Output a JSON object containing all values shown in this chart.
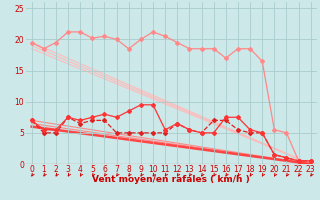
{
  "background_color": "#cce8e8",
  "grid_color": "#aacccc",
  "xlabel": "Vent moyen/en rafales ( km/h )",
  "xlim": [
    -0.5,
    23.5
  ],
  "ylim": [
    0,
    26
  ],
  "yticks": [
    0,
    5,
    10,
    15,
    20,
    25
  ],
  "xticks": [
    0,
    1,
    2,
    3,
    4,
    5,
    6,
    7,
    8,
    9,
    10,
    11,
    12,
    13,
    14,
    15,
    16,
    17,
    18,
    19,
    20,
    21,
    22,
    23
  ],
  "line_rafales": {
    "x": [
      0,
      1,
      2,
      3,
      4,
      5,
      6,
      7,
      8,
      9,
      10,
      11,
      12,
      13,
      14,
      15,
      16,
      17,
      18,
      19,
      20,
      21,
      22,
      23
    ],
    "y": [
      19.5,
      18.5,
      19.5,
      21.2,
      21.2,
      20.2,
      20.5,
      20.0,
      18.5,
      20.0,
      21.2,
      20.5,
      19.5,
      18.5,
      18.5,
      18.5,
      17.0,
      18.5,
      18.5,
      16.5,
      5.5,
      5.0,
      0.5,
      0.5
    ],
    "color": "#ff8888",
    "marker": "D",
    "markersize": 2.0,
    "linewidth": 0.9
  },
  "line_moyen1": {
    "x": [
      0,
      1,
      2,
      3,
      4,
      5,
      6,
      7,
      8,
      9,
      10,
      11,
      12,
      13,
      14,
      15,
      16,
      17,
      18,
      19,
      20,
      21,
      22,
      23
    ],
    "y": [
      7.0,
      5.0,
      5.0,
      7.5,
      6.5,
      7.0,
      7.0,
      5.0,
      5.0,
      5.0,
      5.0,
      5.0,
      6.5,
      5.5,
      5.0,
      7.0,
      7.0,
      5.5,
      5.0,
      5.0,
      1.5,
      1.0,
      0.5,
      0.5
    ],
    "color": "#dd2222",
    "marker": "D",
    "markersize": 2.0,
    "linewidth": 0.9,
    "linestyle": "--"
  },
  "line_moyen2": {
    "x": [
      0,
      1,
      2,
      3,
      4,
      5,
      6,
      7,
      8,
      9,
      10,
      11,
      12,
      13,
      14,
      15,
      16,
      17,
      18,
      19,
      20,
      21,
      22,
      23
    ],
    "y": [
      7.0,
      5.5,
      5.5,
      7.5,
      7.0,
      7.5,
      8.0,
      7.5,
      8.5,
      9.5,
      9.5,
      5.5,
      6.5,
      5.5,
      5.0,
      5.0,
      7.5,
      7.5,
      5.5,
      5.0,
      1.5,
      1.0,
      0.5,
      0.5
    ],
    "color": "#ff3333",
    "marker": "D",
    "markersize": 2.0,
    "linewidth": 0.9,
    "linestyle": "-"
  },
  "straight_lines": [
    {
      "x0": 0,
      "y0": 19.5,
      "x1": 23,
      "y1": 0,
      "color": "#ffbbbb",
      "lw": 0.8
    },
    {
      "x0": 0,
      "y0": 19.0,
      "x1": 23,
      "y1": 0,
      "color": "#ffbbbb",
      "lw": 0.8
    },
    {
      "x0": 0,
      "y0": 18.5,
      "x1": 23,
      "y1": 0,
      "color": "#ffbbbb",
      "lw": 0.8
    },
    {
      "x0": 0,
      "y0": 7.0,
      "x1": 23,
      "y1": 0,
      "color": "#ff8888",
      "lw": 0.8
    },
    {
      "x0": 0,
      "y0": 6.5,
      "x1": 23,
      "y1": 0,
      "color": "#ff8888",
      "lw": 0.8
    },
    {
      "x0": 0,
      "y0": 6.0,
      "x1": 23,
      "y1": 0,
      "color": "#ff4444",
      "lw": 1.8
    }
  ],
  "arrow_color": "#cc0000",
  "xlabel_color": "#cc0000",
  "xlabel_fontsize": 6.5,
  "tick_label_color": "#cc0000",
  "tick_fontsize": 5.5
}
